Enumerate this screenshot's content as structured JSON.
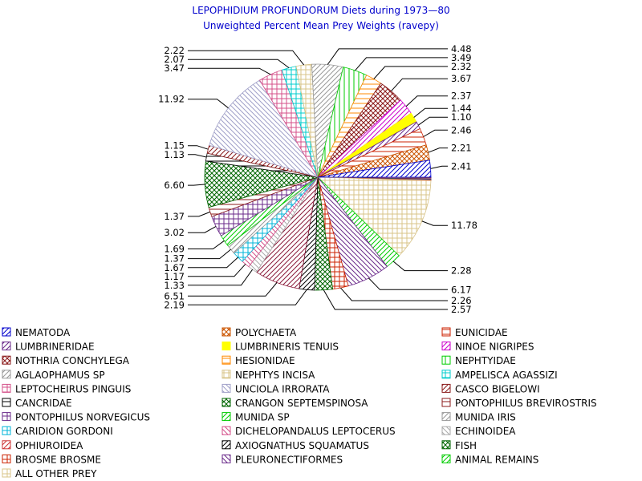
{
  "chart_data": {
    "type": "pie",
    "title": "LEPOPHIDIUM PROFUNDORUM Diets during 1973—80",
    "subtitle": "Unweighted Percent Mean Prey Weights (ravepy)",
    "legend_position": "bottom",
    "slices": [
      {
        "name": "NEMATODA",
        "value": 0.05,
        "label": "",
        "color": "#0000cc",
        "pattern": "diag"
      },
      {
        "name": "LUMBRINERIDAE",
        "value": 0.05,
        "label": "",
        "color": "#6a2a8a",
        "pattern": "diag"
      },
      {
        "name": "NOTHRIA CONCHYLEGA",
        "value": 0.05,
        "label": "",
        "color": "#8b1a1a",
        "pattern": "cross"
      },
      {
        "name": "AGLAOPHAMUS SP",
        "value": 0.05,
        "label": "",
        "color": "#999999",
        "pattern": "diag"
      },
      {
        "name": "LEPTOCHEIRUS PINGUIS",
        "value": 0.05,
        "label": "",
        "color": "#d4508a",
        "pattern": "hatch"
      },
      {
        "name": "CANCRIDAE",
        "value": 0.05,
        "label": "",
        "color": "#000000",
        "pattern": "horiz"
      },
      {
        "name": "PONTOPHILUS NORVEGICUS",
        "value": 0.05,
        "label": "",
        "color": "#6a2a8a",
        "pattern": "grid"
      },
      {
        "name": "CARIDION GORDONI",
        "value": 0.05,
        "label": "",
        "color": "#00b5d8",
        "pattern": "grid"
      },
      {
        "name": "OPHIUROIDEA",
        "value": 0.05,
        "label": "",
        "color": "#cc3333",
        "pattern": "diag"
      },
      {
        "name": "BROSME BROSME",
        "value": 0.05,
        "label": "",
        "color": "#cc2200",
        "pattern": "grid"
      },
      {
        "name": "ALL OTHER PREY",
        "value": 11.78,
        "label": "11.78",
        "color": "#d8c48a",
        "pattern": "grid"
      },
      {
        "name": "ANIMAL REMAINS",
        "value": 2.28,
        "label": "2.28",
        "color": "#00cc00",
        "pattern": "diag"
      },
      {
        "name": "PLEURONECTIFORMES",
        "value": 6.17,
        "label": "6.17",
        "color": "#6a2a8a",
        "pattern": "hatch"
      },
      {
        "name": "BROSME BROSME",
        "value": 2.26,
        "label": "2.26",
        "color": "#cc2200",
        "pattern": "grid"
      },
      {
        "name": "FISH",
        "value": 2.57,
        "label": "2.57",
        "color": "#006600",
        "pattern": "cross"
      },
      {
        "name": "AXIOGNATHUS SQUAMATUS",
        "value": 2.19,
        "label": "2.19",
        "color": "#000000",
        "pattern": "diag"
      },
      {
        "name": "OPHIUROIDEA",
        "value": 6.51,
        "label": "6.51",
        "color": "#8b1a3a",
        "pattern": "diag"
      },
      {
        "name": "ECHINOIDEA",
        "value": 1.33,
        "label": "1.33",
        "color": "#aaaaaa",
        "pattern": "hatch"
      },
      {
        "name": "DICHELOPANDALUS LEPTOCERUS",
        "value": 1.17,
        "label": "1.17",
        "color": "#d4508a",
        "pattern": "hatch"
      },
      {
        "name": "CARIDION GORDONI",
        "value": 1.67,
        "label": "1.67",
        "color": "#00b5d8",
        "pattern": "grid"
      },
      {
        "name": "MUNIDA IRIS",
        "value": 1.37,
        "label": "1.37",
        "color": "#999999",
        "pattern": "diag"
      },
      {
        "name": "MUNIDA SP",
        "value": 1.69,
        "label": "1.69",
        "color": "#00cc00",
        "pattern": "diag"
      },
      {
        "name": "PONTOPHILUS NORVEGICUS",
        "value": 3.02,
        "label": "3.02",
        "color": "#6a2a8a",
        "pattern": "grid"
      },
      {
        "name": "PONTOPHILUS BREVIROSTRIS",
        "value": 1.37,
        "label": "1.37",
        "color": "#8b1a1a",
        "pattern": "horiz"
      },
      {
        "name": "CRANGON SEPTEMSPINOSA",
        "value": 6.6,
        "label": "6.60",
        "color": "#006600",
        "pattern": "cross"
      },
      {
        "name": "CANCRIDAE",
        "value": 1.13,
        "label": "1.13",
        "color": "#000000",
        "pattern": "horiz"
      },
      {
        "name": "CASCO BIGELOWI",
        "value": 1.15,
        "label": "1.15",
        "color": "#8b1a1a",
        "pattern": "diag"
      },
      {
        "name": "UNCIOLA IRRORATA",
        "value": 11.92,
        "label": "11.92",
        "color": "#a0a0c8",
        "pattern": "hatch"
      },
      {
        "name": "LEPTOCHEIRUS PINGUIS",
        "value": 3.47,
        "label": "3.47",
        "color": "#d4508a",
        "pattern": "grid"
      },
      {
        "name": "AMPELISCA AGASSIZI",
        "value": 2.07,
        "label": "2.07",
        "color": "#00cccc",
        "pattern": "grid"
      },
      {
        "name": "NEPHTYS INCISA",
        "value": 2.22,
        "label": "2.22",
        "color": "#d8c48a",
        "pattern": "grid"
      },
      {
        "name": "AGLAOPHAMUS SP",
        "value": 4.48,
        "label": "4.48",
        "color": "#999999",
        "pattern": "diag"
      },
      {
        "name": "NEPHTYIDAE",
        "value": 3.49,
        "label": "3.49",
        "color": "#00cc00",
        "pattern": "vert"
      },
      {
        "name": "HESIONIDAE",
        "value": 2.32,
        "label": "2.32",
        "color": "#ff8800",
        "pattern": "horiz"
      },
      {
        "name": "NOTHRIA CONCHYLEGA",
        "value": 3.67,
        "label": "3.67",
        "color": "#8b1a1a",
        "pattern": "cross"
      },
      {
        "name": "NINOE NIGRIPES",
        "value": 2.37,
        "label": "2.37",
        "color": "#cc00cc",
        "pattern": "diag"
      },
      {
        "name": "LUMBRINERIS TENUIS",
        "value": 1.44,
        "label": "1.44",
        "color": "#ffff00",
        "pattern": "solid"
      },
      {
        "name": "LUMBRINERIDAE",
        "value": 1.1,
        "label": "1.10",
        "color": "#6a2a8a",
        "pattern": "diag"
      },
      {
        "name": "EUNICIDAE",
        "value": 2.46,
        "label": "2.46",
        "color": "#cc2200",
        "pattern": "horiz"
      },
      {
        "name": "POLYCHAETA",
        "value": 2.21,
        "label": "2.21",
        "color": "#cc5500",
        "pattern": "cross"
      },
      {
        "name": "NEMATODA",
        "value": 2.41,
        "label": "2.41",
        "color": "#0000cc",
        "pattern": "diag"
      }
    ],
    "legend": [
      {
        "name": "NEMATODA",
        "color": "#0000cc",
        "pattern": "diag"
      },
      {
        "name": "POLYCHAETA",
        "color": "#cc5500",
        "pattern": "cross"
      },
      {
        "name": "EUNICIDAE",
        "color": "#cc2200",
        "pattern": "horiz"
      },
      {
        "name": "LUMBRINERIDAE",
        "color": "#6a2a8a",
        "pattern": "diag"
      },
      {
        "name": "LUMBRINERIS TENUIS",
        "color": "#ffff00",
        "pattern": "solid"
      },
      {
        "name": "NINOE NIGRIPES",
        "color": "#cc00cc",
        "pattern": "diag"
      },
      {
        "name": "NOTHRIA CONCHYLEGA",
        "color": "#8b1a1a",
        "pattern": "cross"
      },
      {
        "name": "HESIONIDAE",
        "color": "#ff8800",
        "pattern": "horiz"
      },
      {
        "name": "NEPHTYIDAE",
        "color": "#00cc00",
        "pattern": "vert"
      },
      {
        "name": "AGLAOPHAMUS SP",
        "color": "#999999",
        "pattern": "diag"
      },
      {
        "name": "NEPHTYS INCISA",
        "color": "#d8c48a",
        "pattern": "grid"
      },
      {
        "name": "AMPELISCA AGASSIZI",
        "color": "#00cccc",
        "pattern": "grid"
      },
      {
        "name": "LEPTOCHEIRUS PINGUIS",
        "color": "#d4508a",
        "pattern": "grid"
      },
      {
        "name": "UNCIOLA IRRORATA",
        "color": "#a0a0c8",
        "pattern": "hatch"
      },
      {
        "name": "CASCO BIGELOWI",
        "color": "#8b1a1a",
        "pattern": "diag"
      },
      {
        "name": "CANCRIDAE",
        "color": "#000000",
        "pattern": "horiz"
      },
      {
        "name": "CRANGON SEPTEMSPINOSA",
        "color": "#006600",
        "pattern": "cross"
      },
      {
        "name": "PONTOPHILUS BREVIROSTRIS",
        "color": "#8b1a1a",
        "pattern": "horiz"
      },
      {
        "name": "PONTOPHILUS NORVEGICUS",
        "color": "#6a2a8a",
        "pattern": "grid"
      },
      {
        "name": "MUNIDA SP",
        "color": "#00cc00",
        "pattern": "diag"
      },
      {
        "name": "MUNIDA IRIS",
        "color": "#999999",
        "pattern": "diag"
      },
      {
        "name": "CARIDION GORDONI",
        "color": "#00b5d8",
        "pattern": "grid"
      },
      {
        "name": "DICHELOPANDALUS LEPTOCERUS",
        "color": "#d4508a",
        "pattern": "hatch"
      },
      {
        "name": "ECHINOIDEA",
        "color": "#aaaaaa",
        "pattern": "hatch"
      },
      {
        "name": "OPHIUROIDEA",
        "color": "#cc3333",
        "pattern": "diag"
      },
      {
        "name": "AXIOGNATHUS SQUAMATUS",
        "color": "#000000",
        "pattern": "diag"
      },
      {
        "name": "FISH",
        "color": "#006600",
        "pattern": "cross"
      },
      {
        "name": "BROSME BROSME",
        "color": "#cc2200",
        "pattern": "grid"
      },
      {
        "name": "PLEURONECTIFORMES",
        "color": "#6a2a8a",
        "pattern": "hatch"
      },
      {
        "name": "ANIMAL REMAINS",
        "color": "#00cc00",
        "pattern": "diag"
      },
      {
        "name": "ALL OTHER PREY",
        "color": "#d8c48a",
        "pattern": "grid"
      }
    ]
  }
}
